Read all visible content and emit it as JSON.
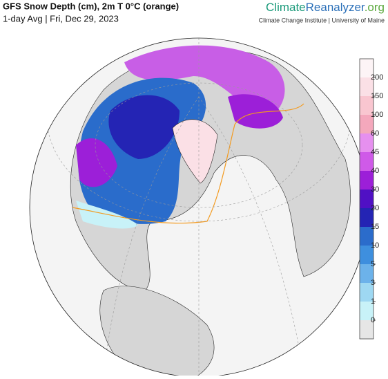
{
  "header": {
    "title": "GFS Snow Depth (cm), 2m T 0°C (orange)",
    "subtitle": "1-day Avg | Fri, Dec 29, 2023",
    "brand": [
      "Climate",
      "Reanalyzer",
      ".org"
    ],
    "institution": "Climate Change Institute | University of Maine"
  },
  "colorbar": {
    "ticks": [
      0,
      1,
      3,
      5,
      10,
      15,
      20,
      30,
      40,
      45,
      60,
      100,
      150,
      200
    ],
    "colors": [
      "#e6e6e6",
      "#c8f2f8",
      "#9ed8f2",
      "#6cb2ea",
      "#3e8fde",
      "#2b6ccb",
      "#2424b4",
      "#5010c4",
      "#9c1fd8",
      "#cf5ae8",
      "#e690ef",
      "#f4a8bc",
      "#f9c6d0",
      "#fbe0e6",
      "#fdf4f6"
    ]
  }
}
